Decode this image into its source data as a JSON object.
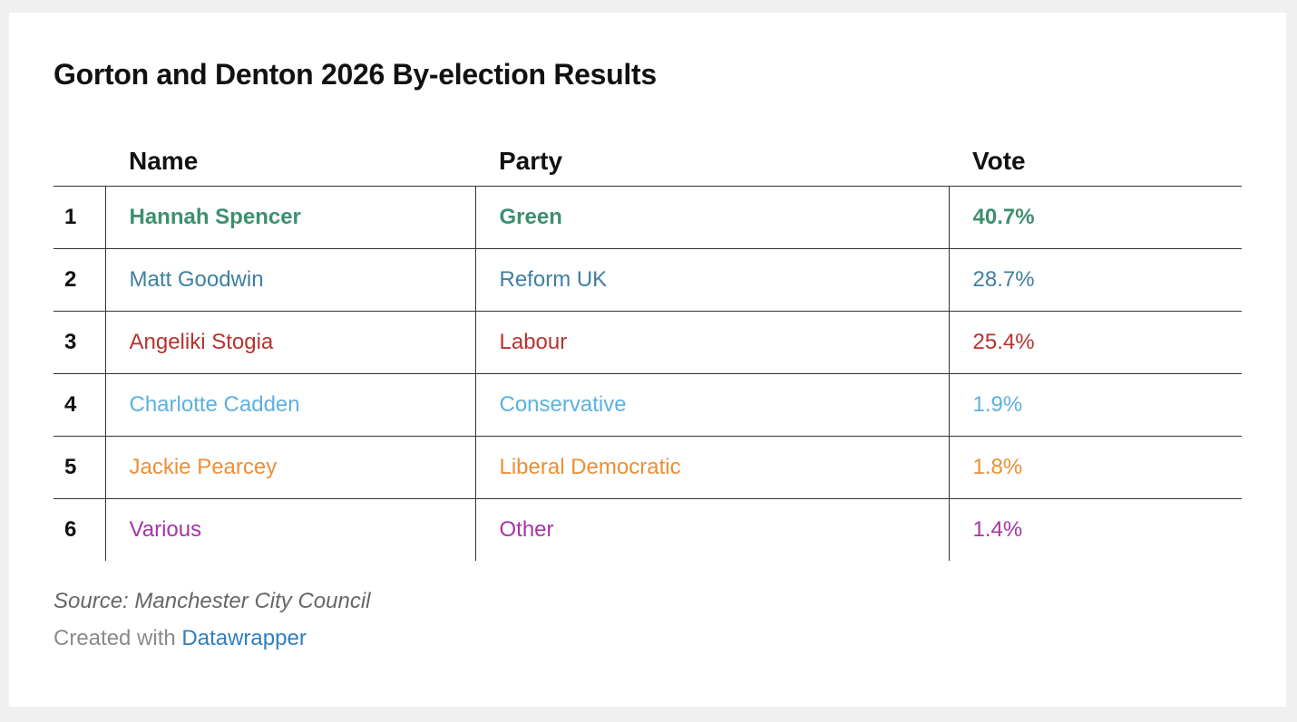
{
  "chart_data": {
    "type": "table",
    "title": "Gorton and Denton 2026 By-election Results",
    "columns": [
      "",
      "Name",
      "Party",
      "Vote"
    ],
    "rows": [
      {
        "rank": "1",
        "name": "Hannah Spencer",
        "party": "Green",
        "vote": "40.7%",
        "color": "#3d8f6f"
      },
      {
        "rank": "2",
        "name": "Matt Goodwin",
        "party": "Reform UK",
        "vote": "28.7%",
        "color": "#3f7fa0"
      },
      {
        "rank": "3",
        "name": "Angeliki Stogia",
        "party": "Labour",
        "vote": "25.4%",
        "color": "#b8322e"
      },
      {
        "rank": "4",
        "name": "Charlotte Cadden",
        "party": "Conservative",
        "vote": "1.9%",
        "color": "#5cb1e0"
      },
      {
        "rank": "5",
        "name": "Jackie Pearcey",
        "party": "Liberal Democratic",
        "vote": "1.8%",
        "color": "#ec8f34"
      },
      {
        "rank": "6",
        "name": "Various",
        "party": "Other",
        "vote": "1.4%",
        "color": "#a535a6"
      }
    ],
    "highlighted_row": 0
  },
  "footer": {
    "source": "Source: Manchester City Council",
    "created_with": "Created with",
    "tool_name": "Datawrapper",
    "tool_color": "#2e7fc0"
  }
}
